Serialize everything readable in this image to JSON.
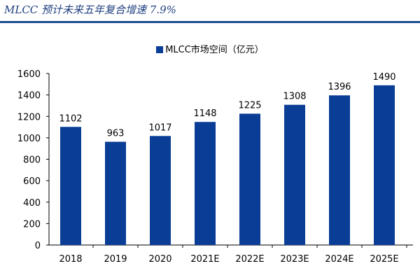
{
  "header": {
    "title": "MLCC 预计未来五年复合增速 7.9%"
  },
  "chart_data": {
    "type": "bar",
    "categories": [
      "2018",
      "2019",
      "2020",
      "2021E",
      "2022E",
      "2023E",
      "2024E",
      "2025E"
    ],
    "series": [
      {
        "name": "MLCC市场空间（亿元）",
        "values": [
          1102,
          963,
          1017,
          1148,
          1225,
          1308,
          1396,
          1490
        ],
        "color": "#0a3d96"
      }
    ],
    "ylim": [
      0,
      1600
    ],
    "yticks": [
      0,
      200,
      400,
      600,
      800,
      1000,
      1200,
      1400,
      1600
    ],
    "grid": false,
    "legend": "top-center",
    "data_labels": true
  }
}
